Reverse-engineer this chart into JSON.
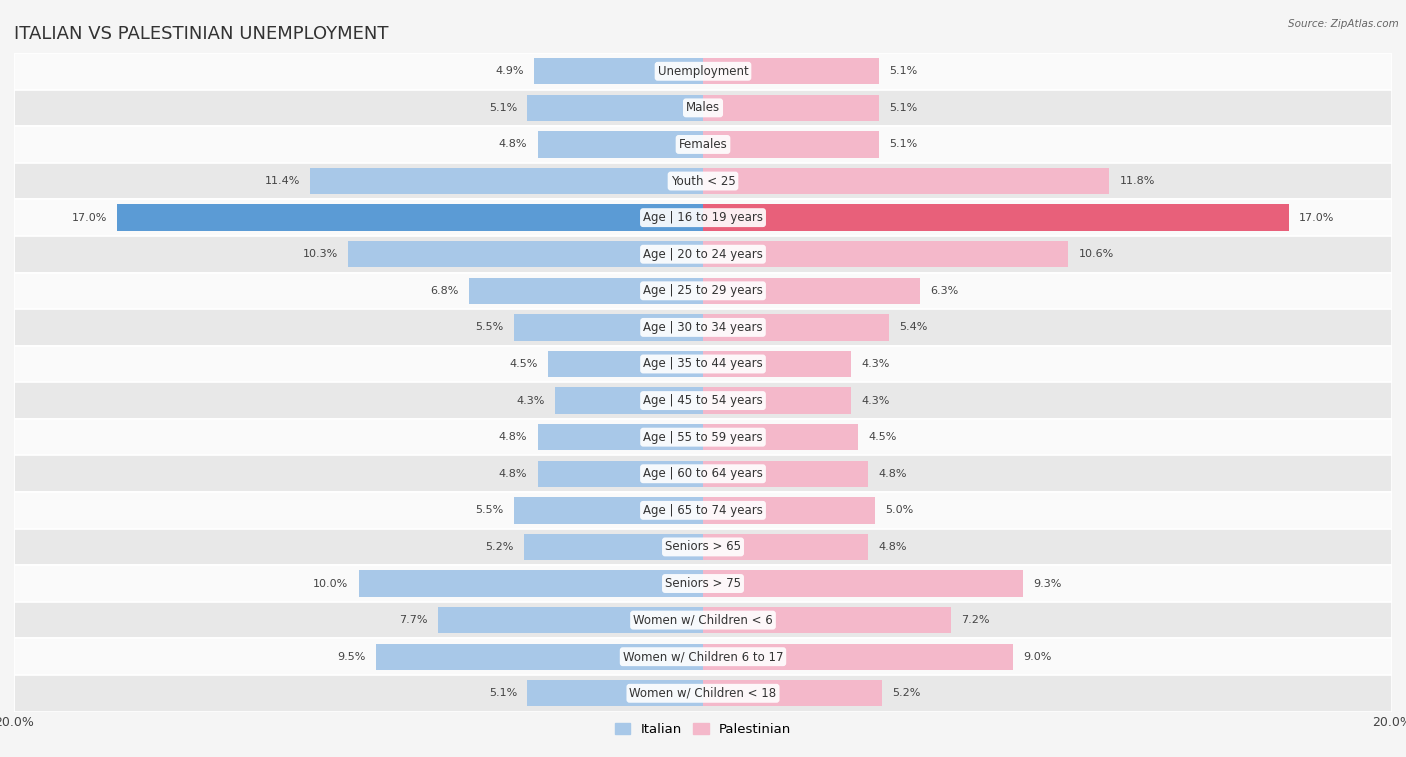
{
  "title": "ITALIAN VS PALESTINIAN UNEMPLOYMENT",
  "source": "Source: ZipAtlas.com",
  "categories": [
    "Unemployment",
    "Males",
    "Females",
    "Youth < 25",
    "Age | 16 to 19 years",
    "Age | 20 to 24 years",
    "Age | 25 to 29 years",
    "Age | 30 to 34 years",
    "Age | 35 to 44 years",
    "Age | 45 to 54 years",
    "Age | 55 to 59 years",
    "Age | 60 to 64 years",
    "Age | 65 to 74 years",
    "Seniors > 65",
    "Seniors > 75",
    "Women w/ Children < 6",
    "Women w/ Children 6 to 17",
    "Women w/ Children < 18"
  ],
  "italian": [
    4.9,
    5.1,
    4.8,
    11.4,
    17.0,
    10.3,
    6.8,
    5.5,
    4.5,
    4.3,
    4.8,
    4.8,
    5.5,
    5.2,
    10.0,
    7.7,
    9.5,
    5.1
  ],
  "palestinian": [
    5.1,
    5.1,
    5.1,
    11.8,
    17.0,
    10.6,
    6.3,
    5.4,
    4.3,
    4.3,
    4.5,
    4.8,
    5.0,
    4.8,
    9.3,
    7.2,
    9.0,
    5.2
  ],
  "italian_color": "#a8c8e8",
  "palestinian_color": "#f4b8ca",
  "highlight_italian_color": "#5b9bd5",
  "highlight_palestinian_color": "#e8607a",
  "background_color": "#f5f5f5",
  "row_light": "#fafafa",
  "row_dark": "#e8e8e8",
  "row_border": "#ffffff",
  "xlim": 20.0,
  "bar_height": 0.72,
  "title_fontsize": 13,
  "label_fontsize": 8.5,
  "value_fontsize": 8.0,
  "legend_fontsize": 9.5
}
